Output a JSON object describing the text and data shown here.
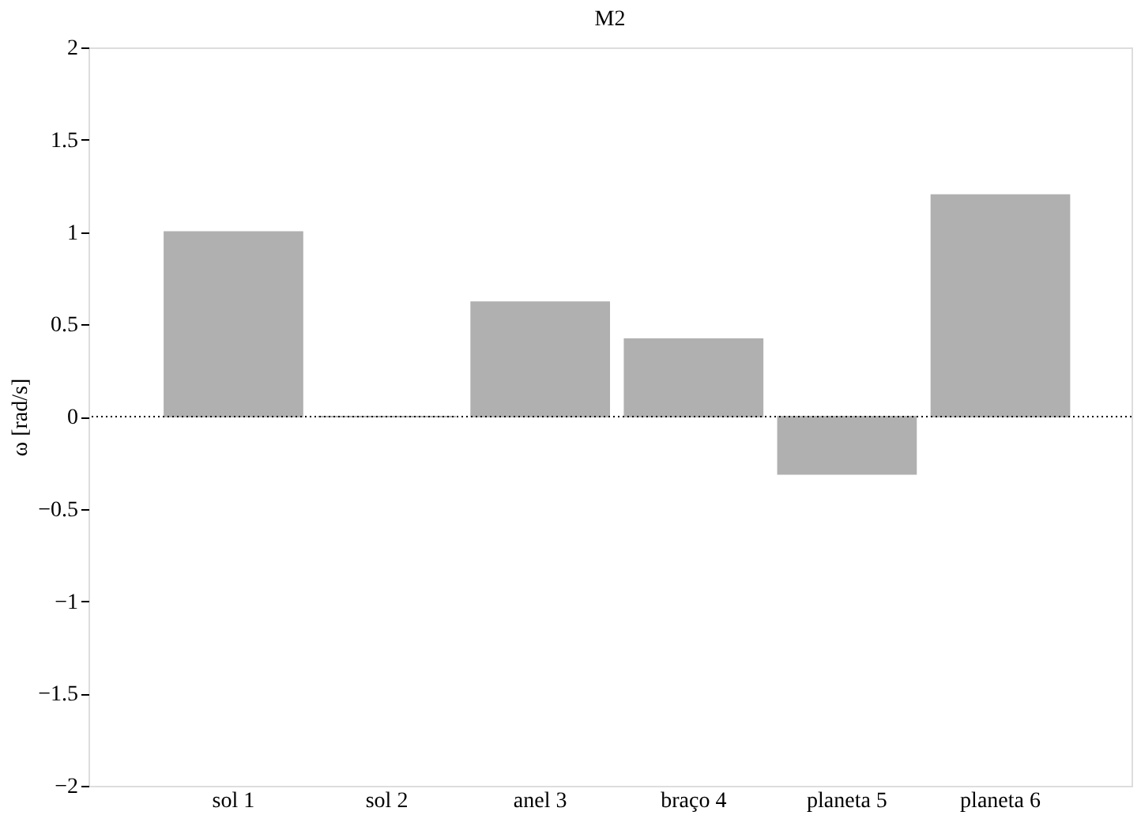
{
  "chart_data": {
    "type": "bar",
    "title": "M2",
    "ylabel": "ω [rad/s]",
    "categories": [
      "sol 1",
      "sol 2",
      "anel 3",
      "braço 4",
      "planeta 5",
      "planeta 6"
    ],
    "values": [
      1.0,
      0,
      0.62,
      0.42,
      -0.31,
      1.2
    ],
    "color": "#b0b0b0",
    "ylim": [
      -2,
      2
    ],
    "yticks": [
      {
        "value": -2,
        "label": "−2"
      },
      {
        "value": -1.5,
        "label": "−1.5"
      },
      {
        "value": -1,
        "label": "−1"
      },
      {
        "value": -0.5,
        "label": "−0.5"
      },
      0,
      0.5,
      1,
      1.5,
      2
    ],
    "ref_lines": [
      {
        "axis": "y",
        "value": 0,
        "line_style": "dotted",
        "color": "#000000"
      }
    ],
    "grid": false
  }
}
